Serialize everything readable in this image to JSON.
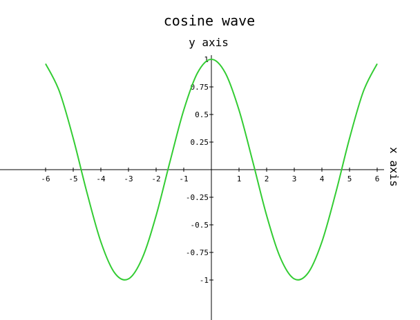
{
  "chart_data": {
    "type": "line",
    "title": "cosine wave",
    "xlabel": "x axis",
    "ylabel": "y axis",
    "xlim": [
      -6,
      6
    ],
    "ylim": [
      -1,
      1
    ],
    "x_ticks": [
      -6,
      -5,
      -4,
      -3,
      -2,
      -1,
      1,
      2,
      3,
      4,
      5,
      6
    ],
    "x_tick_labels": [
      "-6",
      "-5",
      "-4",
      "-3",
      "-2",
      "-1",
      "1",
      "2",
      "3",
      "4",
      "5",
      "6"
    ],
    "y_ticks": [
      1,
      0.75,
      0.5,
      0.25,
      -0.25,
      -0.5,
      -0.75,
      -1
    ],
    "y_tick_labels": [
      "1",
      "0.75",
      "0.5",
      "0.25",
      "-0.25",
      "-0.5",
      "-0.75",
      "-1"
    ],
    "grid": false,
    "series": [
      {
        "color": "#33cc33",
        "x": [
          -6.0,
          -5.5,
          -5.0,
          -4.5,
          -4.0,
          -3.5,
          -3.0,
          -2.5,
          -2.0,
          -1.5,
          -1.0,
          -0.5,
          0.0,
          0.5,
          1.0,
          1.5,
          2.0,
          2.5,
          3.0,
          3.5,
          4.0,
          4.5,
          5.0,
          5.5,
          6.0
        ],
        "y": [
          0.96,
          0.709,
          0.284,
          -0.211,
          -0.654,
          -0.936,
          -0.99,
          -0.801,
          -0.416,
          0.071,
          0.54,
          0.878,
          1.0,
          0.878,
          0.54,
          0.071,
          -0.416,
          -0.801,
          -0.99,
          -0.936,
          -0.654,
          -0.211,
          0.284,
          0.709,
          0.96
        ]
      }
    ]
  }
}
